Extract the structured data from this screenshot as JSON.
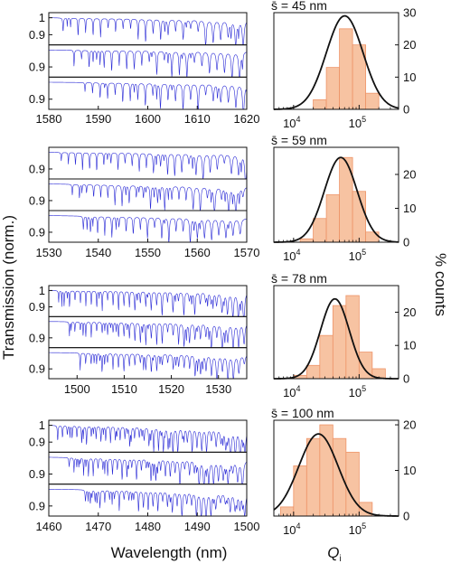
{
  "figure": {
    "transmission_ylabel": "Transmission (norm.)",
    "wavelength_xlabel": "Wavelength (nm)",
    "counts_ylabel": "% counts",
    "q_xlabel": "Q",
    "q_xlabel_sub": "i"
  },
  "colors": {
    "spectrum": "#2a2ad6",
    "bar_fill": "#f7c3a2",
    "bar_stroke": "#ee9468",
    "fit": "#111111",
    "axis": "#111111"
  },
  "chart_data": [
    {
      "type": "line",
      "panel": 1,
      "xlabel": "",
      "xlim": [
        1580,
        1620
      ],
      "x_ticks": [
        "1580",
        "1590",
        "1600",
        "1610",
        "1620"
      ],
      "y_ticks_per_subplot": [
        [
          "1",
          "0.9"
        ],
        [
          "0.9"
        ],
        [
          "0.9"
        ]
      ],
      "ylim": [
        0.84,
        1.03
      ],
      "traces": 3,
      "resonance_spacing_nm": 1.6,
      "notes": "three stacked normalized transmission spectra with dense resonance dips"
    },
    {
      "type": "bar",
      "panel": 1,
      "title": "s̄ = 45 nm",
      "x_scale": "log",
      "xlim": [
        5000,
        400000
      ],
      "x_ticks": [
        "10",
        "10"
      ],
      "x_tick_exponents": [
        "4",
        "5"
      ],
      "ylim": [
        0,
        30
      ],
      "y_ticks": [
        "0",
        "10",
        "20",
        "30"
      ],
      "bins_log10": [
        [
          4.3,
          4.5
        ],
        [
          4.5,
          4.7
        ],
        [
          4.7,
          4.9
        ],
        [
          4.9,
          5.1
        ],
        [
          5.1,
          5.3
        ]
      ],
      "values": [
        3,
        13,
        25,
        20,
        5
      ],
      "fit": {
        "shape": "lognormal",
        "peak_log10": 4.78,
        "sigma_log10": 0.28,
        "amplitude": 29
      }
    },
    {
      "type": "line",
      "panel": 2,
      "xlabel": "",
      "xlim": [
        1530,
        1570
      ],
      "x_ticks": [
        "1530",
        "1540",
        "1550",
        "1560",
        "1570"
      ],
      "y_ticks_per_subplot": [
        [
          "0.9"
        ],
        [
          "0.9"
        ],
        [
          "0.9"
        ]
      ],
      "ylim": [
        0.84,
        1.03
      ],
      "traces": 3,
      "resonance_spacing_nm": 1.5,
      "notes": "three stacked normalized transmission spectra with dense resonance dips"
    },
    {
      "type": "bar",
      "panel": 2,
      "title": "s̄ = 59 nm",
      "x_scale": "log",
      "xlim": [
        5000,
        400000
      ],
      "x_ticks": [
        "10",
        "10"
      ],
      "x_tick_exponents": [
        "4",
        "5"
      ],
      "ylim": [
        0,
        28
      ],
      "y_ticks": [
        "0",
        "10",
        "20"
      ],
      "bins_log10": [
        [
          4.1,
          4.3
        ],
        [
          4.3,
          4.5
        ],
        [
          4.5,
          4.7
        ],
        [
          4.7,
          4.9
        ],
        [
          4.9,
          5.1
        ],
        [
          5.1,
          5.3
        ]
      ],
      "values": [
        1,
        7,
        14,
        25,
        15,
        3
      ],
      "fit": {
        "shape": "lognormal",
        "peak_log10": 4.72,
        "sigma_log10": 0.25,
        "amplitude": 25
      }
    },
    {
      "type": "line",
      "panel": 3,
      "xlabel": "",
      "xlim": [
        1494,
        1536
      ],
      "x_ticks": [
        "1500",
        "1510",
        "1520",
        "1530"
      ],
      "y_ticks_per_subplot": [
        [
          "1",
          "0.9"
        ],
        [
          "0.9"
        ],
        [
          "0.9"
        ]
      ],
      "ylim": [
        0.84,
        1.03
      ],
      "traces": 3,
      "resonance_spacing_nm": 1.2,
      "notes": "three stacked normalized transmission spectra with dense resonance dips"
    },
    {
      "type": "bar",
      "panel": 3,
      "title": "s̄ = 78 nm",
      "x_scale": "log",
      "xlim": [
        5000,
        400000
      ],
      "x_ticks": [
        "10",
        "10"
      ],
      "x_tick_exponents": [
        "4",
        "5"
      ],
      "ylim": [
        0,
        28
      ],
      "y_ticks": [
        "0",
        "10",
        "20"
      ],
      "bins_log10": [
        [
          4.0,
          4.2
        ],
        [
          4.2,
          4.4
        ],
        [
          4.4,
          4.6
        ],
        [
          4.6,
          4.8
        ],
        [
          4.8,
          5.0
        ],
        [
          5.0,
          5.2
        ],
        [
          5.2,
          5.4
        ]
      ],
      "values": [
        1,
        4,
        13,
        22,
        25,
        8,
        3
      ],
      "fit": {
        "shape": "lognormal",
        "peak_log10": 4.63,
        "sigma_log10": 0.22,
        "amplitude": 24
      }
    },
    {
      "type": "line",
      "panel": 4,
      "xlabel": "Wavelength (nm)",
      "xlim": [
        1460,
        1500
      ],
      "x_ticks": [
        "1460",
        "1470",
        "1480",
        "1490",
        "1500"
      ],
      "y_ticks_per_subplot": [
        [
          "1",
          "0.9"
        ],
        [
          "0.9"
        ],
        [
          "0.9"
        ]
      ],
      "ylim": [
        0.84,
        1.03
      ],
      "traces": 3,
      "resonance_spacing_nm": 1.0,
      "notes": "three stacked normalized transmission spectra with dense resonance dips"
    },
    {
      "type": "bar",
      "panel": 4,
      "title": "s̄ = 100 nm",
      "x_scale": "log",
      "xlim": [
        5000,
        400000
      ],
      "x_ticks": [
        "10",
        "10"
      ],
      "x_tick_exponents": [
        "4",
        "5"
      ],
      "ylim": [
        0,
        21
      ],
      "y_ticks": [
        "0",
        "10",
        "20"
      ],
      "bins_log10": [
        [
          3.8,
          4.0
        ],
        [
          4.0,
          4.2
        ],
        [
          4.2,
          4.4
        ],
        [
          4.4,
          4.6
        ],
        [
          4.6,
          4.8
        ],
        [
          4.8,
          5.0
        ],
        [
          5.0,
          5.2
        ]
      ],
      "values": [
        2,
        11,
        17,
        20,
        17,
        14,
        3
      ],
      "fit": {
        "shape": "lognormal",
        "peak_log10": 4.38,
        "sigma_log10": 0.3,
        "amplitude": 18
      }
    }
  ]
}
